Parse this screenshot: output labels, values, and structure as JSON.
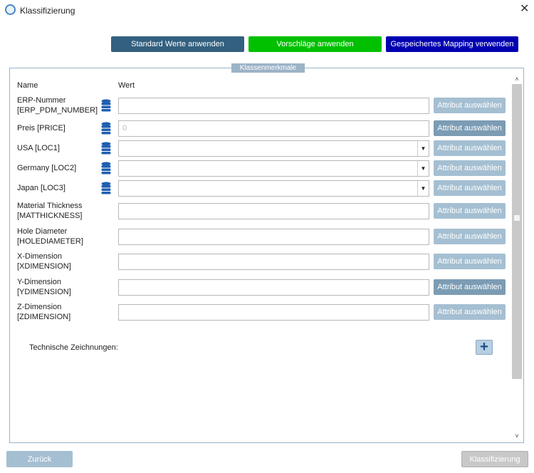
{
  "window": {
    "title": "Klassifizierung"
  },
  "toolbar": {
    "standard": "Standard Werte anwenden",
    "vorschlaege": "Vorschläge anwenden",
    "mapping": "Gespeichertes Mapping verwenden"
  },
  "panel": {
    "legend": "Klassenmerkmale",
    "col_name": "Name",
    "col_value": "Wert"
  },
  "rows": [
    {
      "name": "ERP-Nummer",
      "code": "[ERP_PDM_NUMBER]",
      "value": "",
      "db": true,
      "dropdown": false,
      "button": "Attribut auswählen",
      "active": false
    },
    {
      "name": "Preis [PRICE]",
      "code": "",
      "value": "0",
      "db": true,
      "dropdown": false,
      "button": "Attribut auswählen",
      "active": true
    },
    {
      "name": "USA [LOC1]",
      "code": "",
      "value": "",
      "db": true,
      "dropdown": true,
      "button": "Attribut auswählen",
      "active": false
    },
    {
      "name": "Germany [LOC2]",
      "code": "",
      "value": "",
      "db": true,
      "dropdown": true,
      "button": "Attribut auswählen",
      "active": false
    },
    {
      "name": "Japan [LOC3]",
      "code": "",
      "value": "",
      "db": true,
      "dropdown": true,
      "button": "Attribut auswählen",
      "active": false
    },
    {
      "name": "Material Thickness",
      "code": "[MATTHICKNESS]",
      "value": "",
      "db": false,
      "dropdown": false,
      "button": "Attribut auswählen",
      "active": false
    },
    {
      "name": "Hole Diameter",
      "code": "[HOLEDIAMETER]",
      "value": "",
      "db": false,
      "dropdown": false,
      "button": "Attribut auswählen",
      "active": false
    },
    {
      "name": "X-Dimension",
      "code": "[XDIMENSION]",
      "value": "",
      "db": false,
      "dropdown": false,
      "button": "Attribut auswählen",
      "active": false
    },
    {
      "name": "Y-Dimension",
      "code": "[YDIMENSION]",
      "value": "",
      "db": false,
      "dropdown": false,
      "button": "Attribut auswählen",
      "active": true
    },
    {
      "name": "Z-Dimension",
      "code": "[ZDIMENSION]",
      "value": "",
      "db": false,
      "dropdown": false,
      "button": "Attribut auswählen",
      "active": false
    }
  ],
  "drawings": {
    "label": "Technische Zeichnungen:",
    "add": "+"
  },
  "footer": {
    "back": "Zurück",
    "classify": "Klassifizierung"
  },
  "colors": {
    "standard": "#33607f",
    "vorschlaege": "#00c000",
    "mapping": "#0000b0"
  }
}
